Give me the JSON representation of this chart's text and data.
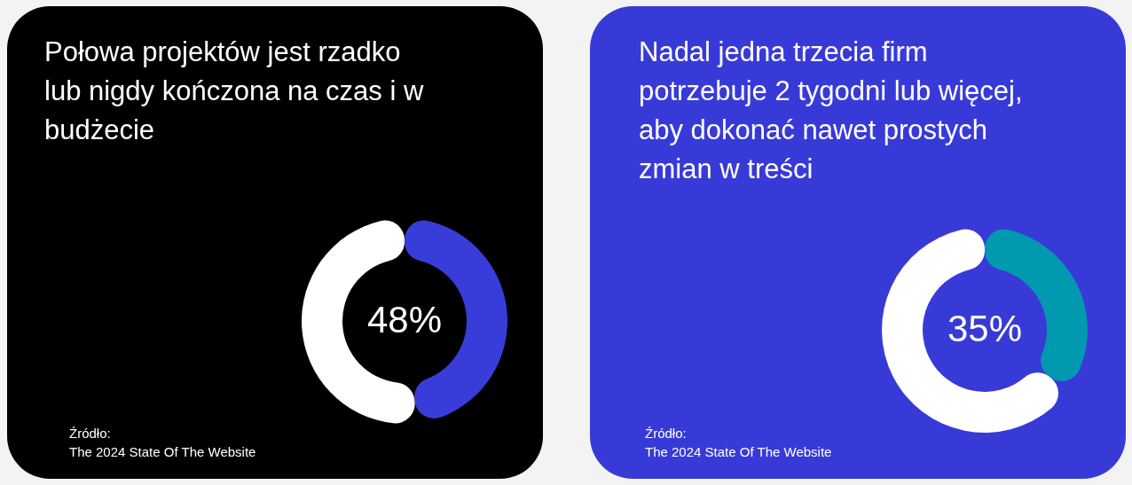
{
  "chart_data": [
    {
      "type": "donut",
      "title": "Połowa projektów jest rzadko lub nigdy kończona na czas i w budżecie",
      "categories": [
        null,
        null
      ],
      "values": [
        48,
        52
      ],
      "colors": [
        "#383dd9",
        "#ffffff"
      ],
      "value_labels": [
        "48%",
        null
      ],
      "annotations": [
        "Źródło:",
        "The 2024 State Of The Website"
      ]
    },
    {
      "type": "donut",
      "title": "Nadal jedna trzecia firm potrzebuje 2 tygodni lub więcej, aby dokonać nawet prostych zmian w treści",
      "categories": [
        null,
        null
      ],
      "values": [
        35,
        65
      ],
      "colors": [
        "#0099b0",
        "#ffffff"
      ],
      "value_labels": [
        "35%",
        null
      ],
      "annotations": [
        "Źródło:",
        "The 2024 State Of The Website"
      ]
    }
  ]
}
